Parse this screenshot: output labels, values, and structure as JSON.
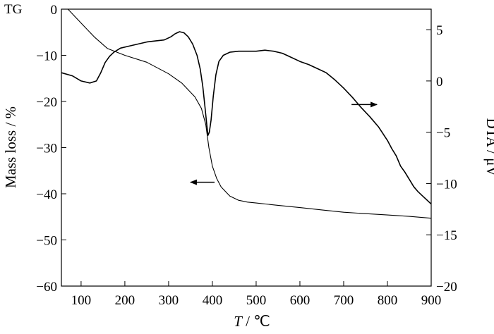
{
  "chart_data": {
    "type": "line",
    "xlabel_var": "T",
    "xlabel_unit": " / ℃",
    "xlim": [
      55,
      900
    ],
    "x_ticks": [
      100,
      200,
      300,
      400,
      500,
      600,
      700,
      800,
      900
    ],
    "y_left": {
      "label": "Mass loss / %",
      "lim": [
        -60,
        0
      ],
      "ticks": [
        0,
        -10,
        -20,
        -30,
        -40,
        -50,
        -60
      ],
      "tag": "TG"
    },
    "y_right": {
      "label": "DTA / μV",
      "lim": [
        -20,
        7
      ],
      "ticks": [
        5,
        0,
        -5,
        -10,
        -15,
        -20
      ]
    },
    "series": [
      {
        "key": "TG",
        "axis": "left",
        "x": [
          70,
          100,
          130,
          160,
          200,
          250,
          300,
          330,
          360,
          375,
          385,
          392,
          400,
          410,
          420,
          440,
          460,
          480,
          500,
          550,
          600,
          650,
          700,
          750,
          800,
          850,
          900
        ],
        "y": [
          0,
          -3,
          -6,
          -8.5,
          -10,
          -11.5,
          -14,
          -16,
          -19,
          -21.5,
          -25,
          -30,
          -34,
          -36.7,
          -38.5,
          -40.5,
          -41.4,
          -41.8,
          -42,
          -42.5,
          -43,
          -43.5,
          -44,
          -44.3,
          -44.6,
          -44.9,
          -45.3
        ]
      },
      {
        "key": "DTA",
        "axis": "right",
        "x": [
          55,
          80,
          100,
          120,
          135,
          145,
          155,
          165,
          175,
          190,
          210,
          230,
          250,
          270,
          290,
          305,
          315,
          325,
          335,
          345,
          355,
          365,
          372,
          378,
          383,
          387,
          390,
          393,
          397,
          402,
          408,
          415,
          425,
          440,
          460,
          480,
          500,
          520,
          540,
          560,
          580,
          600,
          620,
          640,
          660,
          680,
          700,
          720,
          740,
          760,
          780,
          800,
          810,
          820,
          830,
          840,
          850,
          860,
          870,
          880,
          890,
          900
        ],
        "y": [
          0.8,
          0.5,
          0,
          -0.2,
          0,
          0.8,
          1.8,
          2.4,
          2.8,
          3.2,
          3.4,
          3.6,
          3.8,
          3.9,
          4,
          4.3,
          4.6,
          4.8,
          4.7,
          4.3,
          3.6,
          2.5,
          1.2,
          -0.5,
          -2.5,
          -4.2,
          -5.3,
          -5.0,
          -3.8,
          -1.5,
          0.6,
          1.9,
          2.5,
          2.8,
          2.9,
          2.9,
          2.9,
          3.0,
          2.9,
          2.7,
          2.3,
          1.9,
          1.6,
          1.2,
          0.8,
          0.1,
          -0.7,
          -1.6,
          -2.6,
          -3.5,
          -4.5,
          -5.8,
          -6.6,
          -7.3,
          -8.3,
          -8.9,
          -9.6,
          -10.3,
          -10.8,
          -11.2,
          -11.6,
          -12.0
        ]
      }
    ],
    "annotations": [
      {
        "type": "arrow",
        "direction": "left",
        "points_to": "TG",
        "x_from": 405,
        "x_to": 350,
        "y_left": -37.5
      },
      {
        "type": "arrow",
        "direction": "right",
        "points_to": "DTA",
        "x_from": 718,
        "x_to": 776,
        "y_right": -2.3
      }
    ]
  }
}
